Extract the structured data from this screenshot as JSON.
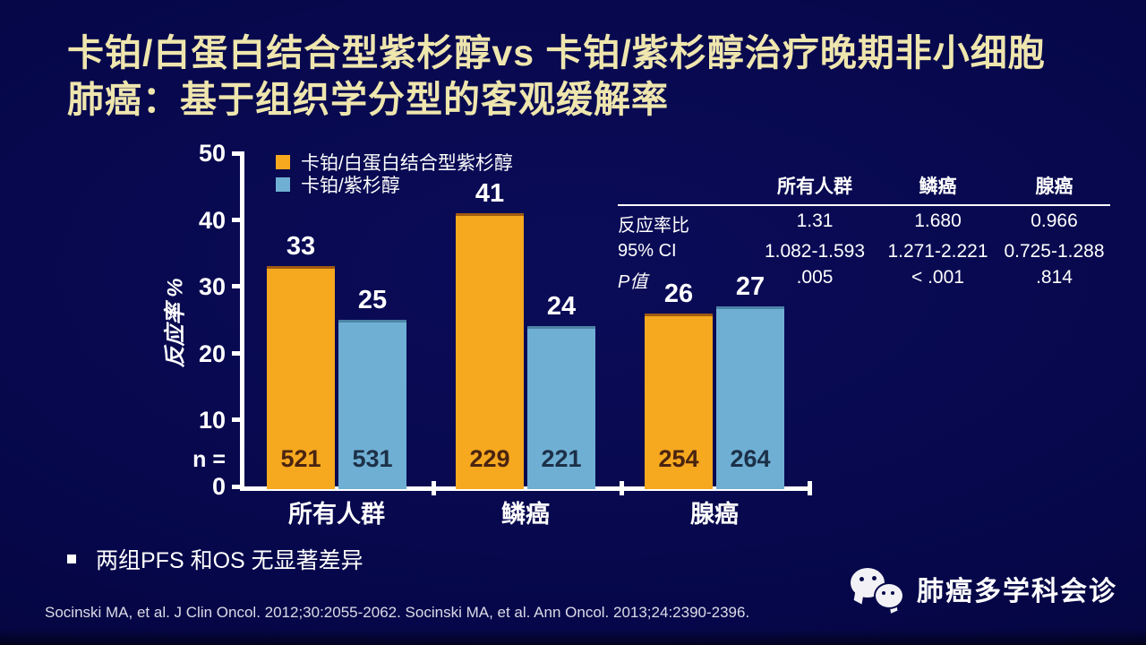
{
  "slide": {
    "title_line1": "卡铂/白蛋白结合型紫杉醇vs 卡铂/紫杉醇治疗晚期非小细胞",
    "title_line2": "肺癌：基于组织学分型的客观缓解率",
    "bullet": "两组PFS 和OS 无显著差异",
    "citation": "Socinski MA, et al. J Clin Oncol. 2012;30:2055-2062. Socinski MA, et al. Ann Oncol. 2013;24:2390-2396.",
    "wechat_label": "肺癌多学科会诊"
  },
  "colors": {
    "title": "#efe6ae",
    "orange": "#f6a81f",
    "blue": "#6fafd3",
    "background": "#06074a"
  },
  "chart_data": {
    "type": "bar",
    "title": "",
    "xlabel": "",
    "ylabel": "反应率 %",
    "ylim": [
      0,
      50
    ],
    "yticks": [
      "50",
      "40",
      "30",
      "20",
      "10",
      "0"
    ],
    "n_prefix": "n =",
    "grid": false,
    "legend_position": "top-left",
    "categories": [
      "所有人群",
      "鳞癌",
      "腺癌"
    ],
    "series": [
      {
        "name": "卡铂/白蛋白结合型紫杉醇",
        "color": "#f6a81f",
        "values": [
          33,
          41,
          26
        ],
        "n": [
          "521",
          "229",
          "254"
        ]
      },
      {
        "name": "卡铂/紫杉醇",
        "color": "#6fafd3",
        "values": [
          25,
          24,
          27
        ],
        "n": [
          "531",
          "221",
          "264"
        ]
      }
    ]
  },
  "stats_table": {
    "col_headers": [
      "所有人群",
      "鳞癌",
      "腺癌"
    ],
    "rows": [
      {
        "label": "反应率比",
        "values": [
          "1.31",
          "1.680",
          "0.966"
        ]
      },
      {
        "label": "95% CI",
        "values": [
          "1.082-1.593",
          "1.271-2.221",
          "0.725-1.288"
        ]
      },
      {
        "label": "P值",
        "values": [
          ".005",
          "< .001",
          ".814"
        ]
      }
    ]
  }
}
